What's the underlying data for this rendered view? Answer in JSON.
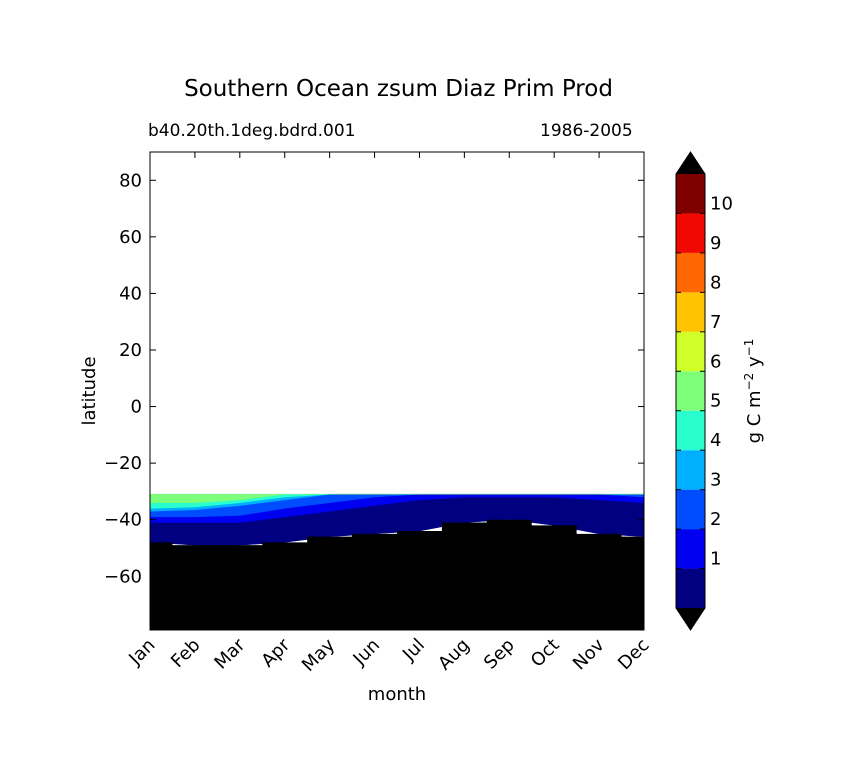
{
  "chart_data": {
    "type": "heatmap",
    "title": "Southern Ocean zsum Diaz Prim Prod",
    "subtitle_left": "b40.20th.1deg.bdrd.001",
    "subtitle_right": "1986-2005",
    "xlabel": "month",
    "ylabel": "latitude",
    "x_categories": [
      "Jan",
      "Feb",
      "Mar",
      "Apr",
      "May",
      "Jun",
      "Jul",
      "Aug",
      "Sep",
      "Oct",
      "Nov",
      "Dec"
    ],
    "ylim": [
      -79,
      90
    ],
    "y_ticks": [
      "80",
      "60",
      "40",
      "20",
      "0",
      "−20",
      "−40",
      "−60"
    ],
    "y_tick_values": [
      80,
      60,
      40,
      20,
      0,
      -20,
      -40,
      -60
    ],
    "data_top_latitude": -31,
    "land_boundary_latitude": [
      -48,
      -49,
      -49,
      -48,
      -46,
      -45,
      -44,
      -41,
      -40,
      -42,
      -45,
      -46
    ],
    "band_edges_by_month": {
      "level_0_1_lower": [
        -48,
        -49,
        -49,
        -48,
        -46,
        -45,
        -44,
        -41,
        -40,
        -42,
        -45,
        -46
      ],
      "level_1_2_lower": [
        -41,
        -41,
        -41,
        -39,
        -37,
        -35,
        -33,
        -32,
        -32,
        -32,
        -33,
        -34
      ],
      "level_2_3_lower": [
        -39,
        -39,
        -38.5,
        -36,
        -34,
        -32,
        -31,
        -31,
        -31,
        -31,
        -31,
        -32
      ],
      "level_3_4_lower": [
        -37,
        -36.5,
        -35,
        -33,
        -31,
        -31,
        -31,
        -31,
        -31,
        -31,
        -31,
        -31
      ],
      "level_4_5_lower": [
        -36,
        -35.5,
        -34,
        -32,
        -31,
        -31,
        -31,
        -31,
        -31,
        -31,
        -31,
        -31
      ],
      "level_5_6_lower": [
        -34,
        -34,
        -33,
        -31,
        -31,
        -31,
        -31,
        -31,
        -31,
        -31,
        -31,
        -31
      ]
    },
    "colorbar": {
      "label": "g C m",
      "label_sup1": "−2",
      "label_mid": " y",
      "label_sup2": "−1",
      "tick_labels": [
        "1",
        "2",
        "3",
        "4",
        "5",
        "6",
        "7",
        "8",
        "9",
        "10"
      ],
      "levels": [
        0,
        1,
        2,
        3,
        4,
        5,
        6,
        7,
        8,
        9,
        10,
        11
      ],
      "colors": [
        "#000080",
        "#0000f1",
        "#004cff",
        "#00b0ff",
        "#29ffce",
        "#7dff7a",
        "#ceff29",
        "#ffc400",
        "#ff6800",
        "#f10800",
        "#800000"
      ],
      "extend_colors": {
        "under": "#000000",
        "over": "#000000"
      }
    },
    "land_color": "#000000",
    "background_color": "#ffffff"
  }
}
